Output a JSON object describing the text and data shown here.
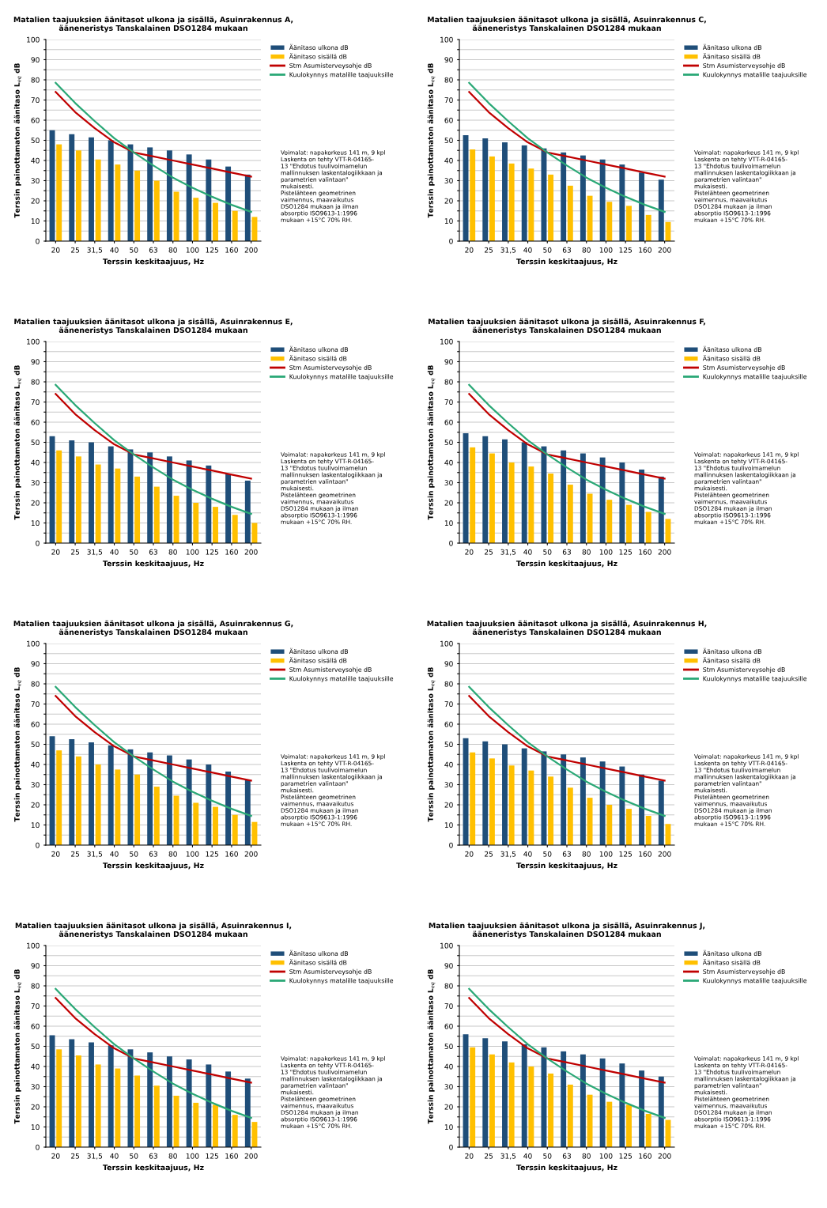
{
  "chart_data": [
    {
      "type": "bar",
      "title": "Matalien taajuuksien äänitasot ulkona ja sisällä, Asuinrakennus A,\nääneneristys Tanskalainen DSO1284 mukaan",
      "xlabel": "Terssin keskitaajuus, Hz",
      "ylabel": "Terssin painottamaton äänitaso L$_{eq}$ dB",
      "categories": [
        "20",
        "25",
        "31,5",
        "40",
        "50",
        "63",
        "80",
        "100",
        "125",
        "160",
        "200"
      ],
      "ylim": [
        0,
        100
      ],
      "yticks": [
        0,
        {
          "value": 5,
          "label": null
        },
        10,
        {
          "value": 15,
          "label": null
        },
        20,
        {
          "value": 25,
          "label": null
        },
        30,
        {
          "value": 35,
          "label": null
        },
        40,
        {
          "value": 45,
          "label": null
        },
        50,
        {
          "value": 55,
          "label": null
        },
        60,
        {
          "value": 65,
          "label": null
        },
        70,
        {
          "value": 75,
          "label": null
        },
        80,
        {
          "value": 85,
          "label": null
        },
        90,
        {
          "value": 95,
          "label": null
        },
        100
      ],
      "grid": "y",
      "legend": "top right",
      "annotations": [
        "Voimalat: napakorkeus 141 m, 9 kpl\nLaskenta on tehty VTT-R-04165-\n13 \"Ehdotus tuulivoimamelun\nmallinnuksen laskentalogiikkaan ja\nparametrien valintaan\"\nmukaisesti.\nPistelähteen geometrinen\nvaimennus, maavaikutus\nDSO1284 mukaan ja ilman\nabsorptio ISO9613-1:1996\nmukaan +15°C 70% RH."
      ],
      "series": [
        {
          "name": "Äänitaso ulkona dB",
          "color": "#1f4e79",
          "values": [
            55,
            53,
            51.5,
            50,
            48,
            46.5,
            45,
            43,
            40.5,
            37,
            33
          ]
        },
        {
          "name": "Äänitaso sisällä dB",
          "color": "#ffc000",
          "values": [
            48,
            45,
            40.5,
            38,
            35,
            30,
            24.5,
            21.5,
            19,
            15,
            12
          ]
        },
        {
          "name": "Stm Asumisterveysohje dB",
          "type": "line",
          "color": "#c00000",
          "values": [
            74,
            64,
            56,
            49,
            44,
            42,
            40,
            38,
            36,
            34,
            32
          ]
        },
        {
          "name": "Kuulokynnys matalille taajuuksille",
          "type": "line",
          "color": "#2aa876",
          "values": [
            78.5,
            68.5,
            59.5,
            51,
            44,
            37.5,
            31.5,
            26.5,
            22,
            18,
            14.5
          ]
        }
      ]
    },
    {
      "type": "bar",
      "title": "Matalien taajuuksien äänitasot ulkona ja sisällä, Asuinrakennus C,\nääneneristys Tanskalainen DSO1284 mukaan",
      "xlabel": "Terssin keskitaajuus, Hz",
      "ylabel": "Terssin painottamaton äänitaso L$_{eq}$ dB",
      "categories": [
        "20",
        "25",
        "31,5",
        "40",
        "50",
        "63",
        "80",
        "100",
        "125",
        "160",
        "200"
      ],
      "ylim": [
        0,
        100
      ],
      "yticks": [
        0,
        {
          "value": 5,
          "label": null
        },
        10,
        {
          "value": 15,
          "label": null
        },
        20,
        {
          "value": 25,
          "label": null
        },
        30,
        {
          "value": 35,
          "label": null
        },
        40,
        {
          "value": 45,
          "label": null
        },
        50,
        {
          "value": 55,
          "label": null
        },
        60,
        {
          "value": 65,
          "label": null
        },
        70,
        {
          "value": 75,
          "label": null
        },
        80,
        {
          "value": 85,
          "label": null
        },
        90,
        {
          "value": 95,
          "label": null
        },
        100
      ],
      "grid": "y",
      "legend": "top right",
      "annotations": [
        "Voimalat: napakorkeus 141 m, 9 kpl\nLaskenta on tehty VTT-R-04165-\n13 \"Ehdotus tuulivoimamelun\nmallinnuksen laskentalogiikkaan ja\nparametrien valintaan\"\nmukaisesti.\nPistelähteen geometrinen\nvaimennus, maavaikutus\nDSO1284 mukaan ja ilman\nabsorptio ISO9613-1:1996\nmukaan +15°C 70% RH."
      ],
      "series": [
        {
          "name": "Äänitaso ulkona dB",
          "color": "#1f4e79",
          "values": [
            52.5,
            51,
            49,
            47.5,
            46,
            44,
            42.5,
            40.5,
            38,
            34,
            30.5
          ]
        },
        {
          "name": "Äänitaso sisällä dB",
          "color": "#ffc000",
          "values": [
            45.5,
            42,
            38.5,
            36,
            33,
            27.5,
            22.5,
            19.5,
            17.5,
            13,
            9.5
          ]
        },
        {
          "name": "Stm Asumisterveysohje dB",
          "type": "line",
          "color": "#c00000",
          "values": [
            74,
            64,
            56,
            49,
            44,
            42,
            40,
            38,
            36,
            34,
            32
          ]
        },
        {
          "name": "Kuulokynnys matalille taajuuksille",
          "type": "line",
          "color": "#2aa876",
          "values": [
            78.5,
            68.5,
            59.5,
            51,
            44,
            37.5,
            31.5,
            26.5,
            22,
            18,
            14.5
          ]
        }
      ]
    },
    {
      "type": "bar",
      "title": "Matalien taajuuksien äänitasot ulkona ja sisällä, Asuinrakennus E,\nääneneristys Tanskalainen DSO1284 mukaan",
      "xlabel": "Terssin keskitaajuus, Hz",
      "ylabel": "Terssin painottamaton äänitaso L$_{eq}$ dB",
      "categories": [
        "20",
        "25",
        "31,5",
        "40",
        "50",
        "63",
        "80",
        "100",
        "125",
        "160",
        "200"
      ],
      "ylim": [
        0,
        100
      ],
      "yticks": [
        0,
        {
          "value": 5,
          "label": null
        },
        10,
        {
          "value": 15,
          "label": null
        },
        20,
        {
          "value": 25,
          "label": null
        },
        30,
        {
          "value": 35,
          "label": null
        },
        40,
        {
          "value": 45,
          "label": null
        },
        50,
        {
          "value": 55,
          "label": null
        },
        60,
        {
          "value": 65,
          "label": null
        },
        70,
        {
          "value": 75,
          "label": null
        },
        80,
        {
          "value": 85,
          "label": null
        },
        90,
        {
          "value": 95,
          "label": null
        },
        100
      ],
      "grid": "y",
      "legend": "top right",
      "annotations": [
        "Voimalat: napakorkeus 141 m, 9 kpl\nLaskenta on tehty VTT-R-04165-\n13 \"Ehdotus tuulivoimamelun\nmallinnuksen laskentalogiikkaan ja\nparametrien valintaan\"\nmukaisesti.\nPistelähteen geometrinen\nvaimennus, maavaikutus\nDSO1284 mukaan ja ilman\nabsorptio ISO9613-1:1996\nmukaan +15°C 70% RH."
      ],
      "series": [
        {
          "name": "Äänitaso ulkona dB",
          "color": "#1f4e79",
          "values": [
            53,
            51,
            50,
            48,
            46.5,
            45,
            43,
            41,
            38.5,
            34.5,
            31
          ]
        },
        {
          "name": "Äänitaso sisällä dB",
          "color": "#ffc000",
          "values": [
            46,
            43,
            39,
            37,
            33,
            28,
            23.5,
            20,
            18,
            14,
            10
          ]
        },
        {
          "name": "Stm Asumisterveysohje dB",
          "type": "line",
          "color": "#c00000",
          "values": [
            74,
            64,
            56,
            49,
            44,
            42,
            40,
            38,
            36,
            34,
            32
          ]
        },
        {
          "name": "Kuulokynnys matalille taajuuksille",
          "type": "line",
          "color": "#2aa876",
          "values": [
            78.5,
            68.5,
            59.5,
            51,
            44,
            37.5,
            31.5,
            26.5,
            22,
            18,
            14.5
          ]
        }
      ]
    },
    {
      "type": "bar",
      "title": "Matalien taajuuksien äänitasot ulkona ja sisällä, Asuinrakennus F,\nääneneristys Tanskalainen DSO1284 mukaan",
      "xlabel": "Terssin keskitaajuus, Hz",
      "ylabel": "Terssin painottamaton äänitaso L$_{eq}$ dB",
      "categories": [
        "20",
        "25",
        "31,5",
        "40",
        "50",
        "63",
        "80",
        "100",
        "125",
        "160",
        "200"
      ],
      "ylim": [
        0,
        100
      ],
      "yticks": [
        0,
        {
          "value": 5,
          "label": null
        },
        10,
        {
          "value": 15,
          "label": null
        },
        20,
        {
          "value": 25,
          "label": null
        },
        30,
        {
          "value": 35,
          "label": null
        },
        40,
        {
          "value": 45,
          "label": null
        },
        50,
        {
          "value": 55,
          "label": null
        },
        60,
        {
          "value": 65,
          "label": null
        },
        70,
        {
          "value": 75,
          "label": null
        },
        80,
        {
          "value": 85,
          "label": null
        },
        90,
        {
          "value": 95,
          "label": null
        },
        100
      ],
      "grid": "y",
      "legend": "top right",
      "annotations": [
        "Voimalat: napakorkeus 141 m, 9 kpl\nLaskenta on tehty VTT-R-04165-\n13 \"Ehdotus tuulivoimamelun\nmallinnuksen laskentalogiikkaan ja\nparametrien valintaan\"\nmukaisesti.\nPistelähteen geometrinen\nvaimennus, maavaikutus\nDSO1284 mukaan ja ilman\nabsorptio ISO9613-1:1996\nmukaan +15°C 70% RH."
      ],
      "series": [
        {
          "name": "Äänitaso ulkona dB",
          "color": "#1f4e79",
          "values": [
            54.5,
            53,
            51.5,
            50,
            48,
            46,
            44.5,
            42.5,
            40,
            36.5,
            33
          ]
        },
        {
          "name": "Äänitaso sisällä dB",
          "color": "#ffc000",
          "values": [
            47.5,
            44.5,
            40,
            38,
            34.5,
            29,
            24.5,
            21.5,
            19,
            15.5,
            12
          ]
        },
        {
          "name": "Stm Asumisterveysohje dB",
          "type": "line",
          "color": "#c00000",
          "values": [
            74,
            64,
            56,
            49,
            44,
            42,
            40,
            38,
            36,
            34,
            32
          ]
        },
        {
          "name": "Kuulokynnys matalille taajuuksille",
          "type": "line",
          "color": "#2aa876",
          "values": [
            78.5,
            68.5,
            59.5,
            51,
            44,
            37.5,
            31.5,
            26.5,
            22,
            18,
            14.5
          ]
        }
      ]
    },
    {
      "type": "bar",
      "title": "Matalien taajuuksien äänitasot ulkona ja sisällä, Asuinrakennus G,\nääneneristys Tanskalainen DSO1284 mukaan",
      "xlabel": "Terssin keskitaajuus, Hz",
      "ylabel": "Terssin painottamaton äänitaso L$_{eq}$ dB",
      "categories": [
        "20",
        "25",
        "31,5",
        "40",
        "50",
        "63",
        "80",
        "100",
        "125",
        "160",
        "200"
      ],
      "ylim": [
        0,
        100
      ],
      "yticks": [
        0,
        {
          "value": 5,
          "label": null
        },
        10,
        {
          "value": 15,
          "label": null
        },
        20,
        {
          "value": 25,
          "label": null
        },
        30,
        {
          "value": 35,
          "label": null
        },
        40,
        {
          "value": 45,
          "label": null
        },
        50,
        {
          "value": 55,
          "label": null
        },
        60,
        {
          "value": 65,
          "label": null
        },
        70,
        {
          "value": 75,
          "label": null
        },
        80,
        {
          "value": 85,
          "label": null
        },
        90,
        {
          "value": 95,
          "label": null
        },
        100
      ],
      "grid": "y",
      "legend": "top right",
      "annotations": [
        "Voimalat: napakorkeus 141 m, 9 kpl\nLaskenta on tehty VTT-R-04165-\n13 \"Ehdotus tuulivoimamelun\nmallinnuksen laskentalogiikkaan ja\nparametrien valintaan\"\nmukaisesti.\nPistelähteen geometrinen\nvaimennus, maavaikutus\nDSO1284 mukaan ja ilman\nabsorptio ISO9613-1:1996\nmukaan +15°C 70% RH."
      ],
      "series": [
        {
          "name": "Äänitaso ulkona dB",
          "color": "#1f4e79",
          "values": [
            54,
            52.5,
            51,
            49.5,
            47.5,
            46,
            44.5,
            42.5,
            40,
            36.5,
            32.5
          ]
        },
        {
          "name": "Äänitaso sisällä dB",
          "color": "#ffc000",
          "values": [
            47,
            44,
            40,
            37.5,
            35,
            29,
            24.5,
            21,
            19,
            15,
            11.5
          ]
        },
        {
          "name": "Stm Asumisterveysohje dB",
          "type": "line",
          "color": "#c00000",
          "values": [
            74,
            64,
            56,
            49,
            44,
            42,
            40,
            38,
            36,
            34,
            32
          ]
        },
        {
          "name": "Kuulokynnys matalille taajuuksille",
          "type": "line",
          "color": "#2aa876",
          "values": [
            78.5,
            68.5,
            59.5,
            51,
            44,
            37.5,
            31.5,
            26.5,
            22,
            18,
            14.5
          ]
        }
      ]
    },
    {
      "type": "bar",
      "title": "Matalien taajuuksien äänitasot ulkona ja sisällä, Asuinrakennus H,\nääneneristys Tanskalainen DSO1284 mukaan",
      "xlabel": "Terssin keskitaajuus, Hz",
      "ylabel": "Terssin painottamaton äänitaso L$_{eq}$ dB",
      "categories": [
        "20",
        "25",
        "31,5",
        "40",
        "50",
        "63",
        "80",
        "100",
        "125",
        "160",
        "200"
      ],
      "ylim": [
        0,
        100
      ],
      "yticks": [
        0,
        {
          "value": 5,
          "label": null
        },
        10,
        {
          "value": 15,
          "label": null
        },
        20,
        {
          "value": 25,
          "label": null
        },
        30,
        {
          "value": 35,
          "label": null
        },
        40,
        {
          "value": 45,
          "label": null
        },
        50,
        {
          "value": 55,
          "label": null
        },
        60,
        {
          "value": 65,
          "label": null
        },
        70,
        {
          "value": 75,
          "label": null
        },
        80,
        {
          "value": 85,
          "label": null
        },
        90,
        {
          "value": 95,
          "label": null
        },
        100
      ],
      "grid": "y",
      "legend": "top right",
      "annotations": [
        "Voimalat: napakorkeus 141 m, 9 kpl\nLaskenta on tehty VTT-R-04165-\n13 \"Ehdotus tuulivoimamelun\nmallinnuksen laskentalogiikkaan ja\nparametrien valintaan\"\nmukaisesti.\nPistelähteen geometrinen\nvaimennus, maavaikutus\nDSO1284 mukaan ja ilman\nabsorptio ISO9613-1:1996\nmukaan +15°C 70% RH."
      ],
      "series": [
        {
          "name": "Äänitaso ulkona dB",
          "color": "#1f4e79",
          "values": [
            53,
            51.5,
            50,
            48,
            46.5,
            45,
            43.5,
            41.5,
            39,
            35,
            32
          ]
        },
        {
          "name": "Äänitaso sisällä dB",
          "color": "#ffc000",
          "values": [
            46,
            43,
            39.5,
            37,
            34,
            28.5,
            23.5,
            20,
            18,
            14.5,
            10.5
          ]
        },
        {
          "name": "Stm Asumisterveysohje dB",
          "type": "line",
          "color": "#c00000",
          "values": [
            74,
            64,
            56,
            49,
            44,
            42,
            40,
            38,
            36,
            34,
            32
          ]
        },
        {
          "name": "Kuulokynnys matalille taajuuksille",
          "type": "line",
          "color": "#2aa876",
          "values": [
            78.5,
            68.5,
            59.5,
            51,
            44,
            37.5,
            31.5,
            26.5,
            22,
            18,
            14.5
          ]
        }
      ]
    },
    {
      "type": "bar",
      "title": "Matalien taajuuksien äänitasot ulkona ja sisällä, Asuinrakennus I,\nääneneristys Tanskalainen DSO1284 mukaan",
      "xlabel": "Terssin keskitaajuus, Hz",
      "ylabel": "Terssin painottamaton äänitaso L$_{eq}$ dB",
      "categories": [
        "20",
        "25",
        "31,5",
        "40",
        "50",
        "63",
        "80",
        "100",
        "125",
        "160",
        "200"
      ],
      "ylim": [
        0,
        100
      ],
      "yticks": [
        0,
        {
          "value": 5,
          "label": null
        },
        10,
        {
          "value": 15,
          "label": null
        },
        20,
        {
          "value": 25,
          "label": null
        },
        30,
        {
          "value": 35,
          "label": null
        },
        40,
        {
          "value": 45,
          "label": null
        },
        50,
        {
          "value": 55,
          "label": null
        },
        60,
        {
          "value": 65,
          "label": null
        },
        70,
        {
          "value": 75,
          "label": null
        },
        80,
        {
          "value": 85,
          "label": null
        },
        90,
        {
          "value": 95,
          "label": null
        },
        100
      ],
      "grid": "y",
      "legend": "top right",
      "annotations": [
        "Voimalat: napakorkeus 141 m, 9 kpl\nLaskenta on tehty VTT-R-04165-\n13 \"Ehdotus tuulivoimamelun\nmallinnuksen laskentalogiikkaan ja\nparametrien valintaan\"\nmukaisesti.\nPistelähteen geometrinen\nvaimennus, maavaikutus\nDSO1284 mukaan ja ilman\nabsorptio ISO9613-1:1996\nmukaan +15°C 70% RH."
      ],
      "series": [
        {
          "name": "Äänitaso ulkona dB",
          "color": "#1f4e79",
          "values": [
            55.5,
            53.5,
            52,
            50.5,
            48.5,
            47,
            45,
            43.5,
            41,
            37.5,
            34
          ]
        },
        {
          "name": "Äänitaso sisällä dB",
          "color": "#ffc000",
          "values": [
            48.5,
            45.5,
            41,
            39,
            35.5,
            30.5,
            25.5,
            22,
            21,
            16,
            12.5
          ]
        },
        {
          "name": "Stm Asumisterveysohje dB",
          "type": "line",
          "color": "#c00000",
          "values": [
            74,
            64,
            56,
            49,
            44,
            42,
            40,
            38,
            36,
            34,
            32
          ]
        },
        {
          "name": "Kuulokynnys matalille taajuuksille",
          "type": "line",
          "color": "#2aa876",
          "values": [
            78.5,
            68.5,
            59.5,
            51,
            44,
            37.5,
            31.5,
            26.5,
            22,
            18,
            14.5
          ]
        }
      ]
    },
    {
      "type": "bar",
      "title": "Matalien taajuuksien äänitasot ulkona ja sisällä, Asuinrakennus J,\nääneneristys Tanskalainen DSO1284 mukaan",
      "xlabel": "Terssin keskitaajuus, Hz",
      "ylabel": "Terssin painottamaton äänitaso L$_{eq}$ dB",
      "categories": [
        "20",
        "25",
        "31,5",
        "40",
        "50",
        "63",
        "80",
        "100",
        "125",
        "160",
        "200"
      ],
      "ylim": [
        0,
        100
      ],
      "yticks": [
        0,
        {
          "value": 5,
          "label": null
        },
        10,
        {
          "value": 15,
          "label": null
        },
        20,
        {
          "value": 25,
          "label": null
        },
        30,
        {
          "value": 35,
          "label": null
        },
        40,
        {
          "value": 45,
          "label": null
        },
        50,
        {
          "value": 55,
          "label": null
        },
        60,
        {
          "value": 65,
          "label": null
        },
        70,
        {
          "value": 75,
          "label": null
        },
        80,
        {
          "value": 85,
          "label": null
        },
        90,
        {
          "value": 95,
          "label": null
        },
        100
      ],
      "grid": "y",
      "legend": "top right",
      "annotations": [
        "Voimalat: napakorkeus 141 m, 9 kpl\nLaskenta on tehty VTT-R-04165-\n13 \"Ehdotus tuulivoimamelun\nmallinnuksen laskentalogiikkaan ja\nparametrien valintaan\"\nmukaisesti.\nPistelähteen geometrinen\nvaimennus, maavaikutus\nDSO1284 mukaan ja ilman\nabsorptio ISO9613-1:1996\nmukaan +15°C 70% RH."
      ],
      "series": [
        {
          "name": "Äänitaso ulkona dB",
          "color": "#1f4e79",
          "values": [
            56,
            54,
            52.5,
            51,
            49.5,
            47.5,
            46,
            44,
            41.5,
            38,
            35
          ]
        },
        {
          "name": "Äänitaso sisällä dB",
          "color": "#ffc000",
          "values": [
            49.5,
            46,
            42,
            40,
            36.5,
            31,
            26,
            22.5,
            21,
            16.5,
            13.5
          ]
        },
        {
          "name": "Stm Asumisterveysohje dB",
          "type": "line",
          "color": "#c00000",
          "values": [
            74,
            64,
            56,
            49,
            44,
            42,
            40,
            38,
            36,
            34,
            32
          ]
        },
        {
          "name": "Kuulokynnys matalille taajuuksille",
          "type": "line",
          "color": "#2aa876",
          "values": [
            78.5,
            68.5,
            59.5,
            51,
            44,
            37.5,
            31.5,
            26.5,
            22,
            18,
            14.5
          ]
        }
      ]
    }
  ]
}
